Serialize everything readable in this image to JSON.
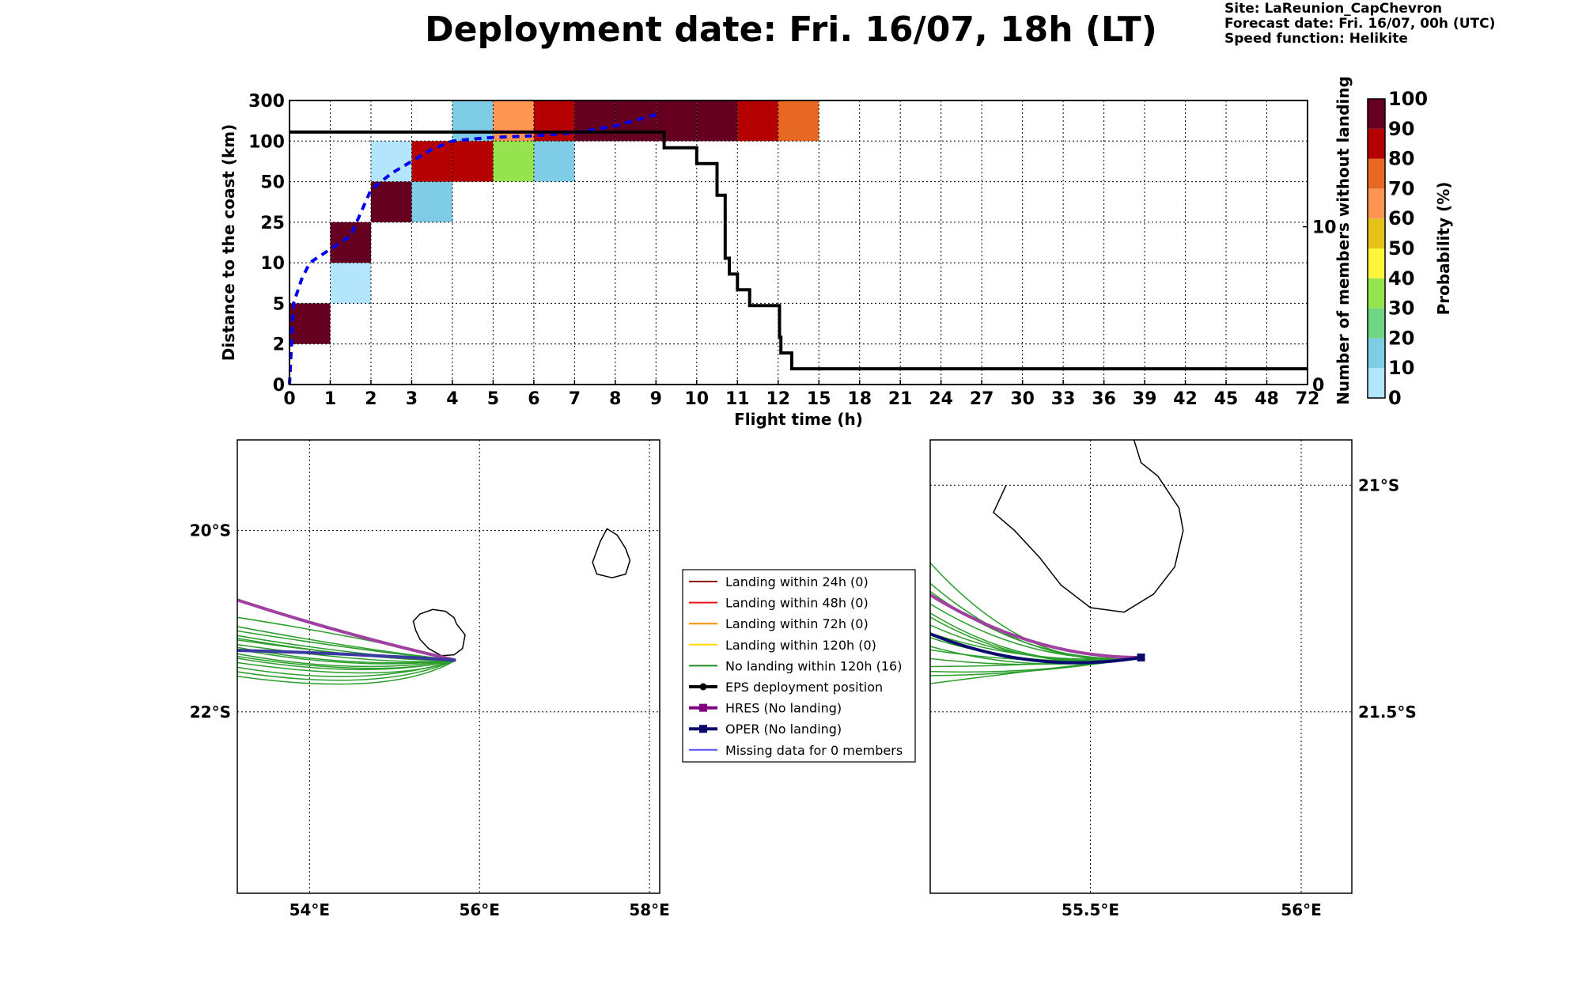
{
  "header": {
    "title": "Deployment date: Fri. 16/07, 18h (LT)",
    "site": "Site: LaReunion_CapChevron",
    "forecast": "Forecast date: Fri. 16/07, 00h (UTC)",
    "speed": "Speed function: Helikite"
  },
  "chart_data": [
    {
      "type": "heatmap",
      "xlabel": "Flight time (h)",
      "ylabel": "Distance to the coast (km)",
      "y2label": "Number of members without landing",
      "x_ticks": [
        "0",
        "1",
        "2",
        "3",
        "4",
        "5",
        "6",
        "7",
        "8",
        "9",
        "10",
        "11",
        "12",
        "15",
        "18",
        "21",
        "24",
        "27",
        "30",
        "33",
        "36",
        "39",
        "42",
        "45",
        "48",
        "72"
      ],
      "y_ticks": [
        "0",
        "2",
        "5",
        "10",
        "25",
        "50",
        "100",
        "300"
      ],
      "y2_ticks": [
        "0",
        "10"
      ],
      "y2lim": [
        0,
        18
      ],
      "grid": true,
      "colors": {
        "c0": "#b3e5fc",
        "c10": "#7ecce5",
        "c20": "#6fd783",
        "c30": "#95e34f",
        "c40": "#fff53a",
        "c50": "#e5c21a",
        "c60": "#fd9652",
        "c70": "#e66822",
        "c80": "#b50000",
        "c90": "#650021"
      },
      "cells": [
        {
          "x": 0,
          "y": 1,
          "cls": "c90"
        },
        {
          "x": 1,
          "y": 2,
          "cls": "c0"
        },
        {
          "x": 1,
          "y": 3,
          "cls": "c90"
        },
        {
          "x": 2,
          "y": 4,
          "cls": "c90"
        },
        {
          "x": 2,
          "y": 5,
          "cls": "c0"
        },
        {
          "x": 3,
          "y": 4,
          "cls": "c10"
        },
        {
          "x": 3,
          "y": 5,
          "cls": "c80"
        },
        {
          "x": 4,
          "y": 5,
          "cls": "c80"
        },
        {
          "x": 4,
          "y": 6,
          "cls": "c10"
        },
        {
          "x": 5,
          "y": 5,
          "cls": "c30"
        },
        {
          "x": 5,
          "y": 6,
          "cls": "c60"
        },
        {
          "x": 6,
          "y": 5,
          "cls": "c10"
        },
        {
          "x": 6,
          "y": 6,
          "cls": "c80"
        },
        {
          "x": 7,
          "y": 6,
          "cls": "c90"
        },
        {
          "x": 8,
          "y": 6,
          "cls": "c90"
        },
        {
          "x": 9,
          "y": 6,
          "cls": "c90"
        },
        {
          "x": 10,
          "y": 6,
          "cls": "c90"
        },
        {
          "x": 11,
          "y": 6,
          "cls": "c80"
        },
        {
          "x": 12,
          "y": 6,
          "cls": "c70"
        }
      ],
      "members_without_landing": {
        "x_hours": [
          0,
          9,
          9.2,
          9.5,
          10,
          10.5,
          10.7,
          10.8,
          10.9,
          11,
          11.1,
          11.3,
          12,
          12.1,
          12.2,
          12.5,
          13,
          72
        ],
        "values": [
          16,
          16,
          15,
          15,
          14,
          12,
          8,
          7,
          7,
          6,
          6,
          5,
          5,
          3,
          2,
          2,
          1,
          1
        ]
      },
      "mean_distance_curve": {
        "x_hours": [
          0,
          0.1,
          0.3,
          0.5,
          1,
          1.5,
          2,
          2.5,
          3,
          3.5,
          4,
          4.5,
          5,
          6,
          7,
          8,
          9
        ],
        "y_km": [
          0,
          5,
          8,
          10,
          15,
          20,
          45,
          60,
          75,
          90,
          100,
          110,
          118,
          126,
          140,
          175,
          230
        ]
      },
      "colorbar": {
        "label": "Probability (%)",
        "ticks": [
          "0",
          "10",
          "20",
          "30",
          "40",
          "50",
          "60",
          "70",
          "80",
          "90",
          "100"
        ]
      }
    },
    {
      "type": "map",
      "region": "wide",
      "lon_ticks": [
        "54°E",
        "56°E",
        "58°E"
      ],
      "lat_ticks": [
        "20°S",
        "22°S"
      ],
      "lon_range": [
        53.15,
        58.12
      ],
      "lat_range": [
        -24.0,
        -19.0
      ],
      "legend": [
        {
          "label": "Landing within 24h (0)",
          "color": "#8b0000",
          "marker": "none"
        },
        {
          "label": "Landing within 48h (0)",
          "color": "#ee1111",
          "marker": "none"
        },
        {
          "label": "Landing within 72h (0)",
          "color": "#ff8c00",
          "marker": "none"
        },
        {
          "label": "Landing within 120h (0)",
          "color": "#ffd700",
          "marker": "none"
        },
        {
          "label": "No landing within 120h (16)",
          "color": "#1e8b1e",
          "marker": "none"
        },
        {
          "label": "EPS deployment position",
          "color": "#000000",
          "marker": "circle"
        },
        {
          "label": "HRES (No landing)",
          "color": "#800080",
          "marker": "square"
        },
        {
          "label": "OPER (No landing)",
          "color": "#0a0a6e",
          "marker": "square"
        },
        {
          "label": "Missing data for 0 members",
          "color": "#4f4fff",
          "marker": "none"
        }
      ]
    },
    {
      "type": "map",
      "region": "zoom",
      "lon_ticks": [
        "55.5°E",
        "56°E"
      ],
      "lat_ticks": [
        "21°S",
        "21.5°S"
      ],
      "lon_range": [
        55.12,
        56.12
      ],
      "lat_range": [
        -21.9,
        -20.9
      ]
    }
  ]
}
